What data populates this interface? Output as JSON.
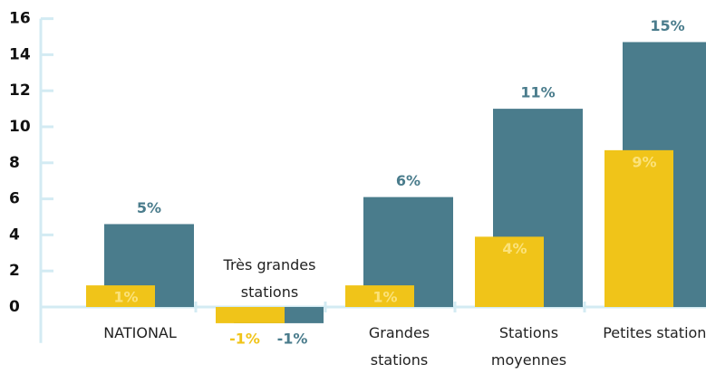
{
  "chart_data": {
    "type": "bar",
    "categories": [
      "NATIONAL",
      "Très grandes stations",
      "Grandes stations",
      "Stations moyennes",
      "Petites stations"
    ],
    "series": [
      {
        "color": "#f0c419",
        "values": [
          1.2,
          -0.9,
          1.2,
          3.9,
          8.7
        ],
        "value_labels": [
          "1%",
          "-1%",
          "1%",
          "4%",
          "9%"
        ]
      },
      {
        "color": "#4a7c8c",
        "values": [
          4.6,
          -0.9,
          6.1,
          11.0,
          14.7
        ],
        "value_labels": [
          "5%",
          "-1%",
          "6%",
          "11%",
          "15%"
        ]
      }
    ],
    "ylim": [
      -2,
      16
    ],
    "yticks": [
      0,
      2,
      4,
      6,
      8,
      10,
      12,
      14,
      16
    ]
  }
}
